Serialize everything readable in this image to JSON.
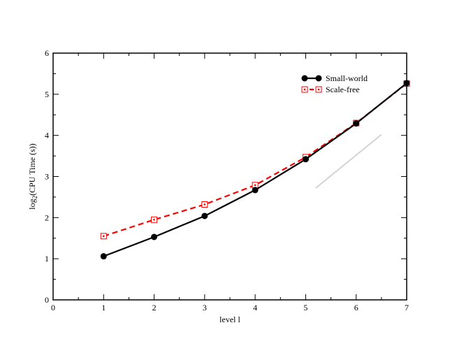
{
  "chart_data": {
    "type": "line",
    "title": "",
    "xlabel": "level l",
    "ylabel_prefix": "log",
    "ylabel_subscript": "2",
    "ylabel_rest": "(CPU Time (s))",
    "xlim": [
      0,
      7
    ],
    "ylim": [
      0,
      6
    ],
    "xticks": [
      "0",
      "1",
      "2",
      "3",
      "4",
      "5",
      "6",
      "7"
    ],
    "yticks": [
      "0",
      "1",
      "2",
      "3",
      "4",
      "5",
      "6"
    ],
    "grid": false,
    "legend_position": "top-right",
    "x": [
      1,
      2,
      3,
      4,
      5,
      6,
      7
    ],
    "series": [
      {
        "name": "Small-world",
        "values": [
          1.06,
          1.53,
          2.04,
          2.67,
          3.42,
          4.29,
          5.27
        ],
        "color": "#000000",
        "line_style": "solid",
        "marker": "filled-circle"
      },
      {
        "name": "Scale-free",
        "values": [
          1.55,
          1.95,
          2.32,
          2.79,
          3.47,
          4.3,
          5.26
        ],
        "color": "#ff0000",
        "line_style": "dashed",
        "marker": "open-square"
      }
    ],
    "reference_line": {
      "x": [
        5.2,
        6.5
      ],
      "y": [
        2.72,
        4.02
      ],
      "color": "#d3d3d3"
    }
  }
}
